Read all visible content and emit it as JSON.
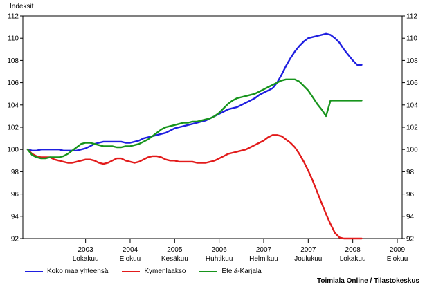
{
  "chart_data": {
    "type": "line",
    "ylabel": "Indeksit",
    "ylim": [
      92,
      112
    ],
    "yticks": [
      92,
      94,
      96,
      98,
      100,
      102,
      104,
      106,
      108,
      110,
      112
    ],
    "x": [
      "2002-09",
      "2002-10",
      "2002-11",
      "2002-12",
      "2003-01",
      "2003-02",
      "2003-03",
      "2003-04",
      "2003-05",
      "2003-06",
      "2003-07",
      "2003-08",
      "2003-09",
      "2003-10",
      "2003-11",
      "2003-12",
      "2004-01",
      "2004-02",
      "2004-03",
      "2004-04",
      "2004-05",
      "2004-06",
      "2004-07",
      "2004-08",
      "2004-09",
      "2004-10",
      "2004-11",
      "2004-12",
      "2005-01",
      "2005-02",
      "2005-03",
      "2005-04",
      "2005-05",
      "2005-06",
      "2005-07",
      "2005-08",
      "2005-09",
      "2005-10",
      "2005-11",
      "2005-12",
      "2006-01",
      "2006-02",
      "2006-03",
      "2006-04",
      "2006-05",
      "2006-06",
      "2006-07",
      "2006-08",
      "2006-09",
      "2006-10",
      "2006-11",
      "2006-12",
      "2007-01",
      "2007-02",
      "2007-03",
      "2007-04",
      "2007-05",
      "2007-06",
      "2007-07",
      "2007-08",
      "2007-09",
      "2007-10",
      "2007-11",
      "2007-12",
      "2008-01",
      "2008-02",
      "2008-03",
      "2008-04",
      "2008-05",
      "2008-06",
      "2008-07",
      "2008-08",
      "2008-09",
      "2008-10",
      "2008-11",
      "2008-12"
    ],
    "xlim": [
      "2002-09",
      "2009-08"
    ],
    "xticks": [
      {
        "year": "2003",
        "month": "Lokakuu",
        "at": "2003-10"
      },
      {
        "year": "2004",
        "month": "Elokuu",
        "at": "2004-08"
      },
      {
        "year": "2005",
        "month": "Kesäkuu",
        "at": "2005-06"
      },
      {
        "year": "2006",
        "month": "Huhtikuu",
        "at": "2006-04"
      },
      {
        "year": "2007",
        "month": "Helmikuu",
        "at": "2007-02"
      },
      {
        "year": "2007",
        "month": "Joulukuu",
        "at": "2007-12"
      },
      {
        "year": "2008",
        "month": "Lokakuu",
        "at": "2008-10"
      },
      {
        "year": "2009",
        "month": "Elokuu",
        "at": "2009-08"
      }
    ],
    "series": [
      {
        "name": "Koko maa yhteensä",
        "color": "#1f1fe0",
        "values": [
          100.0,
          99.9,
          99.9,
          100.0,
          100.0,
          100.0,
          100.0,
          100.0,
          99.9,
          99.9,
          99.9,
          99.9,
          100.0,
          100.1,
          100.3,
          100.5,
          100.6,
          100.7,
          100.7,
          100.7,
          100.7,
          100.7,
          100.6,
          100.6,
          100.7,
          100.8,
          101.0,
          101.1,
          101.2,
          101.3,
          101.4,
          101.5,
          101.7,
          101.9,
          102.0,
          102.1,
          102.2,
          102.3,
          102.4,
          102.5,
          102.6,
          102.8,
          103.0,
          103.2,
          103.4,
          103.6,
          103.7,
          103.8,
          104.0,
          104.2,
          104.4,
          104.6,
          104.9,
          105.1,
          105.3,
          105.5,
          106.0,
          106.7,
          107.5,
          108.2,
          108.8,
          109.3,
          109.7,
          110.0,
          110.1,
          110.2,
          110.3,
          110.4,
          110.3,
          110.0,
          109.6,
          109.0,
          108.5,
          108.0,
          107.6,
          107.6
        ]
      },
      {
        "name": "Kymenlaakso",
        "color": "#e21b1b",
        "values": [
          100.0,
          99.6,
          99.4,
          99.3,
          99.3,
          99.3,
          99.1,
          99.0,
          98.9,
          98.8,
          98.8,
          98.9,
          99.0,
          99.1,
          99.1,
          99.0,
          98.8,
          98.7,
          98.8,
          99.0,
          99.2,
          99.2,
          99.0,
          98.9,
          98.8,
          98.9,
          99.1,
          99.3,
          99.4,
          99.4,
          99.3,
          99.1,
          99.0,
          99.0,
          98.9,
          98.9,
          98.9,
          98.9,
          98.8,
          98.8,
          98.8,
          98.9,
          99.0,
          99.2,
          99.4,
          99.6,
          99.7,
          99.8,
          99.9,
          100.0,
          100.2,
          100.4,
          100.6,
          100.8,
          101.1,
          101.3,
          101.3,
          101.2,
          100.9,
          100.6,
          100.2,
          99.6,
          98.9,
          98.1,
          97.2,
          96.2,
          95.2,
          94.2,
          93.3,
          92.5,
          92.1,
          92.0,
          92.0,
          92.0,
          92.0,
          92.0
        ]
      },
      {
        "name": "Etelä-Karjala",
        "color": "#17941c",
        "values": [
          100.0,
          99.5,
          99.3,
          99.2,
          99.2,
          99.3,
          99.3,
          99.3,
          99.4,
          99.6,
          99.9,
          100.2,
          100.5,
          100.6,
          100.6,
          100.5,
          100.4,
          100.3,
          100.3,
          100.3,
          100.2,
          100.2,
          100.3,
          100.3,
          100.4,
          100.5,
          100.7,
          100.9,
          101.2,
          101.5,
          101.8,
          102.0,
          102.1,
          102.2,
          102.3,
          102.4,
          102.4,
          102.5,
          102.5,
          102.6,
          102.7,
          102.8,
          103.0,
          103.3,
          103.7,
          104.1,
          104.4,
          104.6,
          104.7,
          104.8,
          104.9,
          105.0,
          105.2,
          105.4,
          105.6,
          105.8,
          106.0,
          106.2,
          106.3,
          106.3,
          106.3,
          106.1,
          105.7,
          105.3,
          104.7,
          104.1,
          103.6,
          103.0,
          104.4,
          104.4,
          104.4,
          104.4,
          104.4,
          104.4,
          104.4,
          104.4
        ]
      }
    ],
    "series_length": [
      76,
      76,
      76
    ],
    "grid": false,
    "legend_position": "bottom-left",
    "source": "Toimiala Online / Tilastokeskus"
  }
}
